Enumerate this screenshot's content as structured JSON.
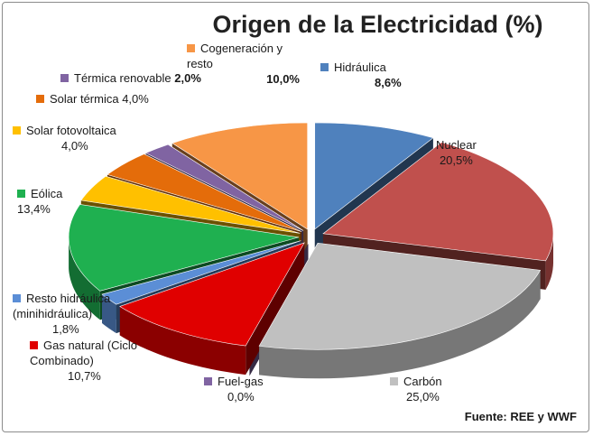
{
  "chart_data": {
    "type": "pie",
    "title": "Origen de la Electricidad (%)",
    "slices": [
      {
        "name": "Hidráulica",
        "value": 8.6,
        "label_value": "8,6%",
        "color": "#4f81bd"
      },
      {
        "name": "Nuclear",
        "value": 20.5,
        "label_value": "20,5%",
        "color": "#c0504d"
      },
      {
        "name": "Carbón",
        "value": 25.0,
        "label_value": "25,0%",
        "color": "#c0c0c0"
      },
      {
        "name": "Fuel-gas",
        "value": 0.0,
        "label_value": "0,0%",
        "color": "#8064a2"
      },
      {
        "name": "Gas natural (Ciclo Combinado)",
        "value": 10.7,
        "label_value": "10,7%",
        "color": "#e00000"
      },
      {
        "name": "Resto hidráulica (minihidráulica)",
        "value": 1.8,
        "label_value": "1,8%",
        "color": "#5b8ed6"
      },
      {
        "name": "Eólica",
        "value": 13.4,
        "label_value": "13,4%",
        "color": "#1fb050"
      },
      {
        "name": "Solar fotovoltaica",
        "value": 4.0,
        "label_value": "4,0%",
        "color": "#ffc000"
      },
      {
        "name": "Solar térmica",
        "value": 4.0,
        "label_value": "4,0%",
        "color": "#e46c0a"
      },
      {
        "name": "Térmica renovable",
        "value": 2.0,
        "label_value": "2,0%",
        "color": "#8064a2"
      },
      {
        "name": "Cogeneración y resto",
        "value": 10.0,
        "label_value": "10,0%",
        "color": "#f79646"
      }
    ],
    "source": "Fuente: REE y WWF"
  }
}
